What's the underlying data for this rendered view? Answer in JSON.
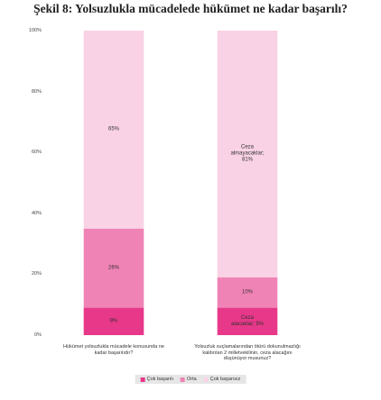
{
  "chart_data": {
    "type": "stacked_bar",
    "title": "Şekil 8: Yolsuzlukla mücadelede hükümet ne kadar başarılı?",
    "categories": [
      "Hükümet yolsuzlukla mücadele konusunda ne kadar başarılıdır?",
      "Yolsuzluk suçlamalarından ötürü dokunulmazlığı kaldırılan 2 milletvekilinin, ceza alacağını düşünüyor musunuz?"
    ],
    "series": [
      {
        "name": "Çok başarılı",
        "color": "#e8388a",
        "values": [
          9,
          9
        ],
        "value_labels": [
          "9%",
          "Ceza alacaklar; 9%"
        ]
      },
      {
        "name": "Orta",
        "color": "#f083b5",
        "values": [
          26,
          10
        ],
        "value_labels": [
          "26%",
          "10%"
        ]
      },
      {
        "name": "Çok başarısız",
        "color": "#f9d2e5",
        "values": [
          65,
          81
        ],
        "value_labels": [
          "65%",
          "Ceza almayacaklar; 81%"
        ]
      }
    ],
    "ylim": [
      0,
      100
    ],
    "yticks": [
      {
        "value": 0,
        "label": "0%"
      },
      {
        "value": 20,
        "label": "20%"
      },
      {
        "value": 40,
        "label": "40%"
      },
      {
        "value": 60,
        "label": "60%"
      },
      {
        "value": 80,
        "label": "80%"
      },
      {
        "value": 100,
        "label": "100%"
      }
    ],
    "legend": "bottom"
  }
}
